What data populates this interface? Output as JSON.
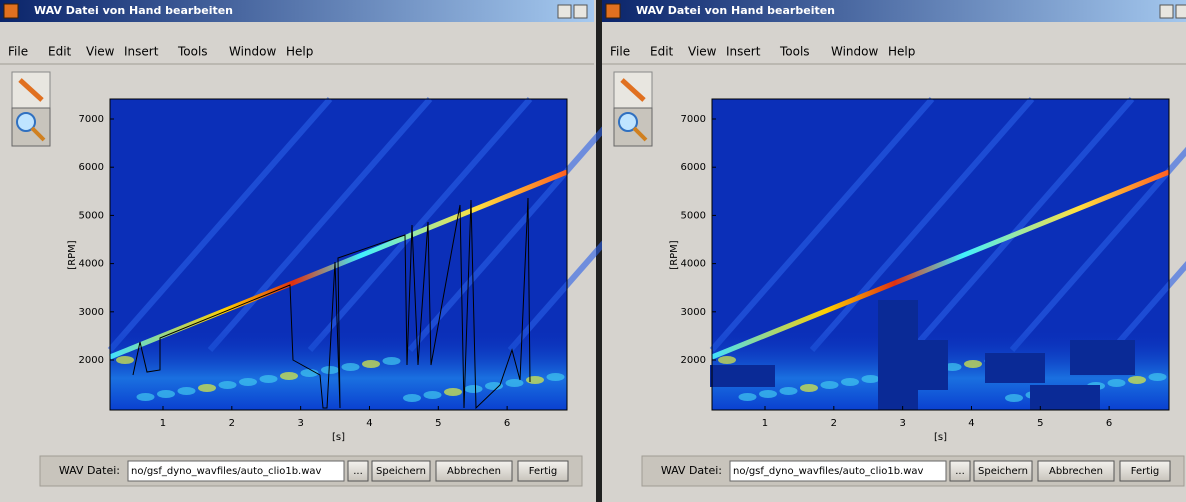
{
  "windows": [
    {
      "title": "WAV Datei von Hand bearbeiten",
      "menu": [
        "File",
        "Edit",
        "View",
        "Insert",
        "Tools",
        "Window",
        "Help"
      ],
      "plot": {
        "ylabel": "[RPM]",
        "xlabel": "[s]",
        "xlim": [
          0.23,
          6.87
        ],
        "ylim": [
          963,
          7415
        ],
        "xticks": [
          1,
          2,
          3,
          4,
          5,
          6
        ],
        "yticks": [
          2000,
          3000,
          4000,
          5000,
          6000,
          7000
        ]
      },
      "footer": {
        "label": "WAV Datei:",
        "path": "no/gsf_dyno_wavfiles/auto_clio1b.wav",
        "buttons": [
          "...",
          "Speichern",
          "Abbrechen",
          "Fertig"
        ]
      }
    },
    {
      "title": "WAV Datei von Hand bearbeiten",
      "menu": [
        "File",
        "Edit",
        "View",
        "Insert",
        "Tools",
        "Window",
        "Help"
      ],
      "plot": {
        "ylabel": "[RPM]",
        "xlabel": "[s]",
        "xlim": [
          0.23,
          6.87
        ],
        "ylim": [
          963,
          7415
        ],
        "xticks": [
          1,
          2,
          3,
          4,
          5,
          6
        ],
        "yticks": [
          2000,
          3000,
          4000,
          5000,
          6000,
          7000
        ]
      },
      "footer": {
        "label": "WAV Datei:",
        "path": "no/gsf_dyno_wavfiles/auto_clio1b.wav",
        "buttons": [
          "...",
          "Speichern",
          "Abbrechen",
          "Fertig"
        ]
      }
    }
  ]
}
